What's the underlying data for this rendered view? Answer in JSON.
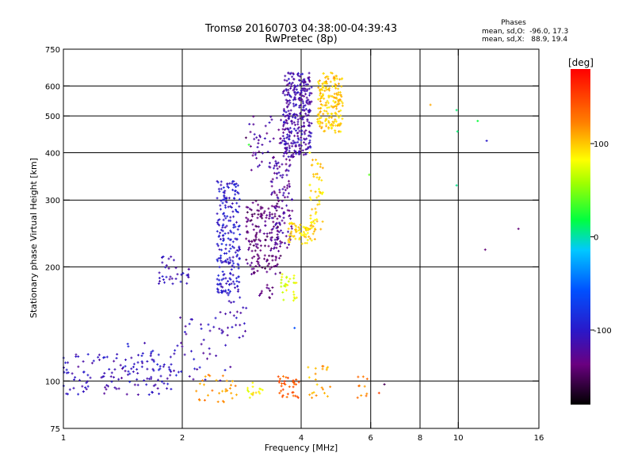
{
  "chart_data": {
    "type": "scatter",
    "title": "Tromsø 20160703 04:38:00-04:39:43",
    "subtitle": "RwPretec (8p)",
    "stats": {
      "heading": "Phases",
      "line1": "mean, sd,O:  -96.0, 17.3",
      "line2": "mean, sd,X:   88.9, 19.4"
    },
    "xlabel": "Frequency [MHz]",
    "ylabel": "Stationary phase Virtual Height [km]",
    "x_scale": "log",
    "y_scale": "log",
    "xlim": [
      1,
      16
    ],
    "ylim": [
      75,
      750
    ],
    "xticks": [
      1,
      2,
      4,
      6,
      8,
      10,
      16
    ],
    "yticks": [
      75,
      100,
      200,
      300,
      400,
      500,
      600,
      750
    ],
    "x_gridlines": [
      2,
      4,
      6,
      8,
      10
    ],
    "y_gridlines": [
      100,
      200,
      300,
      400,
      500,
      600
    ],
    "grid": true,
    "colorbar": {
      "label": "[deg]",
      "range": [
        -180,
        180
      ],
      "ticks": [
        100,
        0,
        -100
      ],
      "colormap": "rainbow (black–purple–blue–cyan–green–yellow–orange–red)"
    },
    "clusters": [
      {
        "f": [
          1.0,
          1.95
        ],
        "h": [
          92,
          118
        ],
        "phase": -110,
        "n": 120,
        "note": "low-height O trace"
      },
      {
        "f": [
          1.45,
          1.95
        ],
        "h": [
          98,
          130
        ],
        "phase": -100,
        "n": 30
      },
      {
        "f": [
          1.95,
          2.7
        ],
        "h": [
          100,
          155
        ],
        "phase": -110,
        "n": 45
      },
      {
        "f": [
          1.72,
          2.08
        ],
        "h": [
          180,
          215
        ],
        "phase": -110,
        "n": 35,
        "note": "E-layer cusp"
      },
      {
        "f": [
          2.45,
          2.8
        ],
        "h": [
          170,
          340
        ],
        "phase": -100,
        "n": 220,
        "note": "F1 trace"
      },
      {
        "f": [
          2.6,
          2.95
        ],
        "h": [
          130,
          175
        ],
        "phase": -110,
        "n": 20
      },
      {
        "f": [
          2.9,
          3.55
        ],
        "h": [
          190,
          300
        ],
        "phase": -140,
        "n": 170
      },
      {
        "f": [
          3.35,
          3.8
        ],
        "h": [
          220,
          390
        ],
        "phase": -125,
        "n": 110
      },
      {
        "f": [
          2.95,
          3.75
        ],
        "h": [
          360,
          500
        ],
        "phase": -120,
        "n": 60
      },
      {
        "f": [
          3.6,
          4.25
        ],
        "h": [
          390,
          650
        ],
        "phase": -115,
        "n": 320,
        "note": "F2 O-mode"
      },
      {
        "f": [
          3.1,
          3.4
        ],
        "h": [
          165,
          180
        ],
        "phase": -140,
        "n": 12
      },
      {
        "f": [
          3.7,
          4.35
        ],
        "h": [
          230,
          262
        ],
        "phase": 95,
        "n": 70,
        "note": "X-mode trace"
      },
      {
        "f": [
          4.2,
          4.55
        ],
        "h": [
          250,
          400
        ],
        "phase": 95,
        "n": 50
      },
      {
        "f": [
          3.5,
          3.9
        ],
        "h": [
          160,
          195
        ],
        "phase": 75,
        "n": 28
      },
      {
        "f": [
          4.4,
          5.1
        ],
        "h": [
          450,
          650
        ],
        "phase": 100,
        "n": 190,
        "note": "F2 X-mode"
      },
      {
        "f": [
          2.15,
          2.75
        ],
        "h": [
          88,
          104
        ],
        "phase": 115,
        "n": 30,
        "note": "sporadic X echoes"
      },
      {
        "f": [
          2.9,
          3.2
        ],
        "h": [
          90,
          100
        ],
        "phase": 85,
        "n": 15
      },
      {
        "f": [
          3.5,
          3.95
        ],
        "h": [
          90,
          104
        ],
        "phase": 140,
        "n": 35
      },
      {
        "f": [
          4.15,
          4.75
        ],
        "h": [
          90,
          112
        ],
        "phase": 110,
        "n": 22
      },
      {
        "f": [
          5.5,
          5.95
        ],
        "h": [
          90,
          110
        ],
        "phase": 120,
        "n": 10
      }
    ],
    "sparse_points": [
      {
        "f": 2.9,
        "h": 438,
        "phase": -150
      },
      {
        "f": 2.95,
        "h": 420,
        "phase": 30
      },
      {
        "f": 3.85,
        "h": 138,
        "phase": -60
      },
      {
        "f": 5.95,
        "h": 350,
        "phase": 40
      },
      {
        "f": 6.5,
        "h": 98,
        "phase": -150
      },
      {
        "f": 6.3,
        "h": 93,
        "phase": 150
      },
      {
        "f": 8.5,
        "h": 535,
        "phase": 110
      },
      {
        "f": 9.9,
        "h": 518,
        "phase": 10
      },
      {
        "f": 9.95,
        "h": 455,
        "phase": 10
      },
      {
        "f": 9.9,
        "h": 328,
        "phase": 5
      },
      {
        "f": 11.2,
        "h": 485,
        "phase": 20
      },
      {
        "f": 11.8,
        "h": 430,
        "phase": -100
      },
      {
        "f": 11.7,
        "h": 222,
        "phase": -140
      },
      {
        "f": 14.2,
        "h": 252,
        "phase": -140
      }
    ]
  }
}
